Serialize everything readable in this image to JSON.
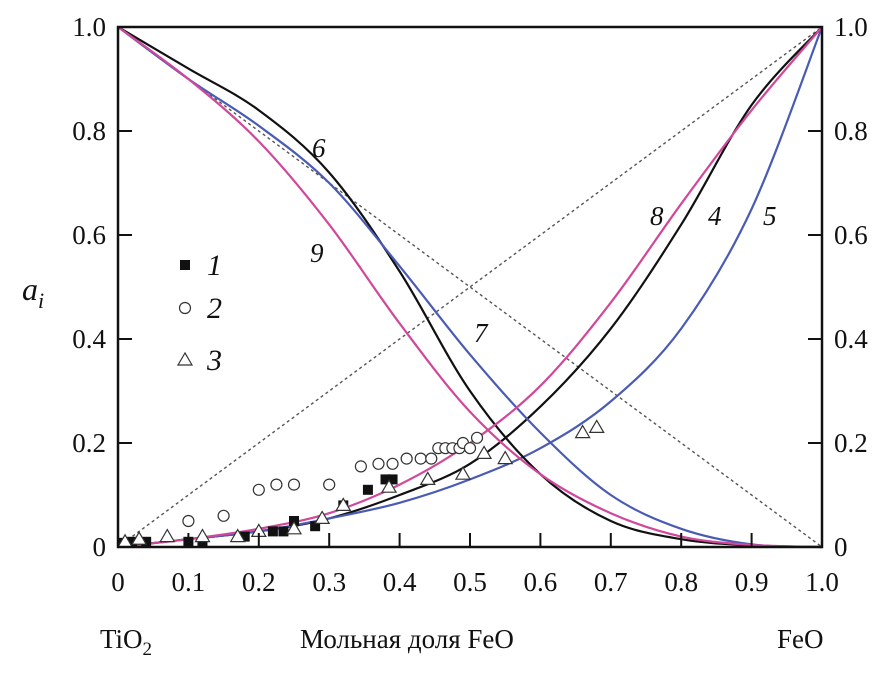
{
  "chart_data": {
    "type": "line",
    "ylabel": "a",
    "ylabel_sub": "i",
    "xlabel": "Мольная доля FeO",
    "x_left_label": "TiO",
    "x_left_label_sub": "2",
    "x_right_label": "FeO",
    "xlim": [
      0,
      1.0
    ],
    "ylim": [
      0,
      1.0
    ],
    "x_ticks": [
      "0",
      "0.1",
      "0.2",
      "0.3",
      "0.4",
      "0.5",
      "0.6",
      "0.7",
      "0.8",
      "0.9",
      "1.0"
    ],
    "y_ticks": [
      "0",
      "0.2",
      "0.4",
      "0.6",
      "0.8",
      "1.0"
    ],
    "grid": false,
    "legend_placement": "center-left",
    "x": [
      0,
      0.1,
      0.2,
      0.3,
      0.4,
      0.5,
      0.6,
      0.7,
      0.8,
      0.9,
      1.0
    ],
    "series": [
      {
        "name": "4",
        "color": "#111111",
        "values": [
          0,
          0.015,
          0.03,
          0.055,
          0.1,
          0.16,
          0.27,
          0.42,
          0.62,
          0.85,
          1.0
        ]
      },
      {
        "name": "5",
        "color": "#4a5bb5",
        "values": [
          0,
          0.015,
          0.03,
          0.055,
          0.085,
          0.13,
          0.19,
          0.28,
          0.42,
          0.65,
          1.0
        ]
      },
      {
        "name": "6",
        "color": "#111111",
        "values": [
          1.0,
          0.92,
          0.84,
          0.72,
          0.53,
          0.3,
          0.14,
          0.05,
          0.015,
          0.003,
          0
        ]
      },
      {
        "name": "7",
        "color": "#4a5bb5",
        "values": [
          1.0,
          0.9,
          0.81,
          0.7,
          0.54,
          0.37,
          0.22,
          0.1,
          0.035,
          0.005,
          0
        ]
      },
      {
        "name": "8",
        "color": "#d0489a",
        "values": [
          0,
          0.015,
          0.035,
          0.065,
          0.12,
          0.2,
          0.31,
          0.47,
          0.66,
          0.84,
          1.0
        ]
      },
      {
        "name": "9",
        "color": "#d0489a",
        "values": [
          1.0,
          0.9,
          0.78,
          0.62,
          0.43,
          0.26,
          0.14,
          0.065,
          0.02,
          0.004,
          0
        ]
      }
    ],
    "ideal_lines": [
      {
        "style": "dotted",
        "color": "#555555",
        "points": [
          [
            0,
            0
          ],
          [
            1,
            1
          ]
        ]
      },
      {
        "style": "dotted",
        "color": "#555555",
        "points": [
          [
            0,
            1
          ],
          [
            1,
            0
          ]
        ]
      }
    ],
    "scatter": [
      {
        "name": "1",
        "marker": "filled-square",
        "points": [
          [
            0.007,
            0.008
          ],
          [
            0.02,
            0.01
          ],
          [
            0.04,
            0.01
          ],
          [
            0.1,
            0.01
          ],
          [
            0.12,
            0.01
          ],
          [
            0.18,
            0.02
          ],
          [
            0.22,
            0.03
          ],
          [
            0.235,
            0.03
          ],
          [
            0.25,
            0.05
          ],
          [
            0.28,
            0.04
          ],
          [
            0.32,
            0.08
          ],
          [
            0.355,
            0.11
          ],
          [
            0.38,
            0.13
          ],
          [
            0.39,
            0.13
          ]
        ]
      },
      {
        "name": "2",
        "marker": "open-circle",
        "points": [
          [
            0.1,
            0.05
          ],
          [
            0.15,
            0.06
          ],
          [
            0.2,
            0.11
          ],
          [
            0.225,
            0.12
          ],
          [
            0.25,
            0.12
          ],
          [
            0.3,
            0.12
          ],
          [
            0.345,
            0.155
          ],
          [
            0.37,
            0.16
          ],
          [
            0.39,
            0.16
          ],
          [
            0.41,
            0.17
          ],
          [
            0.43,
            0.17
          ],
          [
            0.445,
            0.17
          ],
          [
            0.455,
            0.19
          ],
          [
            0.465,
            0.19
          ],
          [
            0.475,
            0.19
          ],
          [
            0.485,
            0.19
          ],
          [
            0.49,
            0.2
          ],
          [
            0.5,
            0.19
          ],
          [
            0.51,
            0.21
          ]
        ]
      },
      {
        "name": "3",
        "marker": "open-triangle",
        "points": [
          [
            0.01,
            0.01
          ],
          [
            0.03,
            0.015
          ],
          [
            0.07,
            0.02
          ],
          [
            0.12,
            0.02
          ],
          [
            0.17,
            0.02
          ],
          [
            0.2,
            0.03
          ],
          [
            0.25,
            0.035
          ],
          [
            0.29,
            0.055
          ],
          [
            0.32,
            0.08
          ],
          [
            0.385,
            0.115
          ],
          [
            0.44,
            0.13
          ],
          [
            0.49,
            0.14
          ],
          [
            0.52,
            0.18
          ],
          [
            0.55,
            0.17
          ],
          [
            0.66,
            0.22
          ],
          [
            0.68,
            0.23
          ]
        ]
      }
    ]
  }
}
